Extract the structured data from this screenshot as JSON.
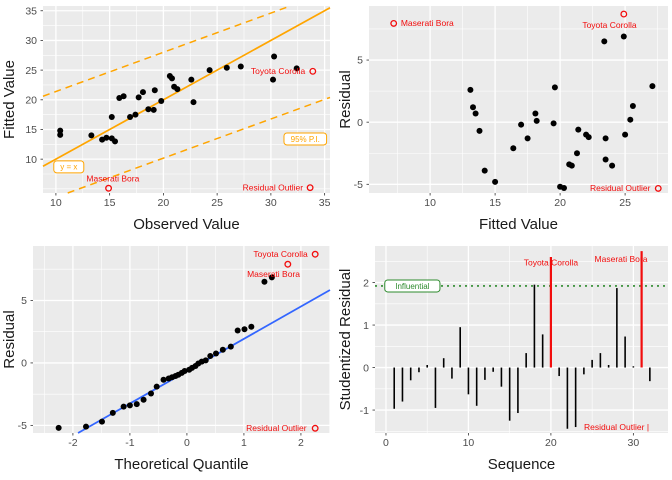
{
  "colors": {
    "page_bg": "#ffffff",
    "panel_bg": "#ebebeb",
    "grid": "#ffffff",
    "tick_text": "#4d4d4d",
    "tick_mark": "#333333",
    "axis_title": "#1a1a1a",
    "point": "#000000",
    "red": "#f20d0d",
    "orange": "#ffa500",
    "blue": "#3366ff",
    "green": "#2e8b2e"
  },
  "chart_data": [
    {
      "id": "observed-vs-fitted",
      "type": "scatter",
      "xlabel": "Observed Value",
      "ylabel": "Fitted Value",
      "xlim": [
        8.8,
        35.5
      ],
      "ylim": [
        4.3,
        35.8
      ],
      "xticks": [
        10,
        15,
        20,
        25,
        30,
        35
      ],
      "xminor": [
        12.5,
        17.5,
        22.5,
        27.5,
        32.5
      ],
      "yticks": [
        10,
        15,
        20,
        25,
        30,
        35
      ],
      "yminor": [
        5,
        7.5,
        12.5,
        17.5,
        22.5,
        27.5,
        32.5
      ],
      "margin": {
        "l": 43,
        "r": 6,
        "t": 6,
        "b": 47
      },
      "points": [
        [
          10.4,
          14.8
        ],
        [
          10.4,
          14.1
        ],
        [
          13.3,
          14.0
        ],
        [
          14.3,
          13.3
        ],
        [
          14.7,
          13.6
        ],
        [
          15.2,
          13.5
        ],
        [
          15.5,
          13.0
        ],
        [
          15.2,
          17.1
        ],
        [
          15.9,
          20.3
        ],
        [
          16.3,
          20.6
        ],
        [
          16.9,
          17.1
        ],
        [
          17.4,
          17.5
        ],
        [
          17.7,
          20.4
        ],
        [
          18.1,
          21.3
        ],
        [
          18.6,
          18.4
        ],
        [
          19.1,
          18.3
        ],
        [
          19.2,
          21.6
        ],
        [
          19.8,
          19.8
        ],
        [
          20.6,
          24.0
        ],
        [
          20.8,
          23.6
        ],
        [
          21.0,
          22.2
        ],
        [
          21.3,
          21.8
        ],
        [
          22.6,
          23.4
        ],
        [
          22.8,
          19.6
        ],
        [
          24.3,
          25.0
        ],
        [
          25.9,
          25.4
        ],
        [
          27.2,
          25.6
        ],
        [
          30.3,
          27.3
        ],
        [
          30.2,
          23.4
        ],
        [
          32.4,
          25.3
        ]
      ],
      "lines": [
        {
          "x1": 8.8,
          "y1": 8.8,
          "x2": 35.5,
          "y2": 35.5,
          "color": "orange",
          "w": 1.7
        },
        {
          "x1": 8.8,
          "y1": 20.6,
          "x2": 31.8,
          "y2": 35.8,
          "color": "orange",
          "w": 1.5,
          "dash": "7 5"
        },
        {
          "x1": 11.1,
          "y1": 4.3,
          "x2": 35.5,
          "y2": 20.4,
          "color": "orange",
          "w": 1.5,
          "dash": "7 5"
        }
      ],
      "flags": [
        {
          "label": "Toyota Corolla",
          "circle": [
            33.9,
            24.8
          ],
          "text": [
            33.2,
            24.8
          ],
          "anchor": "end"
        },
        {
          "label": "Maserati Bora",
          "circle": [
            14.9,
            5.1
          ],
          "text": [
            15.3,
            6.7
          ],
          "anchor": "middle"
        }
      ],
      "legend": {
        "label": "Residual Outlier",
        "marker": "circle",
        "marker_pos": [
          33.65,
          5.2
        ],
        "text": [
          33.0,
          5.2
        ],
        "anchor": "end"
      },
      "boxes": [
        {
          "label": "y = x",
          "cx": 11.2,
          "cy": 8.7,
          "color": "orange"
        },
        {
          "label": "95% P.I.",
          "cx": 33.2,
          "cy": 13.4,
          "color": "orange"
        }
      ]
    },
    {
      "id": "residual-vs-fitted",
      "type": "scatter",
      "xlabel": "Fitted Value",
      "ylabel": "Residual",
      "xlim": [
        5.3,
        28.3
      ],
      "ylim": [
        -5.7,
        9.35
      ],
      "xticks": [
        10,
        15,
        20,
        25
      ],
      "xminor": [
        7.5,
        12.5,
        17.5,
        22.5,
        27.5
      ],
      "yticks": [
        -5,
        0,
        5
      ],
      "yminor": [
        -2.5,
        2.5,
        7.5
      ],
      "margin": {
        "l": 33,
        "r": 4,
        "t": 6,
        "b": 47
      },
      "points": [
        [
          13.1,
          2.6
        ],
        [
          13.3,
          1.2
        ],
        [
          13.5,
          0.7
        ],
        [
          13.8,
          -0.7
        ],
        [
          14.2,
          -3.9
        ],
        [
          15.0,
          -4.8
        ],
        [
          16.4,
          -2.1
        ],
        [
          17.0,
          -0.2
        ],
        [
          17.5,
          -1.3
        ],
        [
          18.1,
          0.7
        ],
        [
          18.2,
          0.1
        ],
        [
          19.5,
          -0.1
        ],
        [
          19.6,
          2.8
        ],
        [
          20.0,
          -5.2
        ],
        [
          20.3,
          -5.3
        ],
        [
          20.7,
          -3.4
        ],
        [
          20.9,
          -3.5
        ],
        [
          21.3,
          -2.5
        ],
        [
          21.4,
          -0.6
        ],
        [
          22.0,
          -1.0
        ],
        [
          22.2,
          -1.2
        ],
        [
          23.4,
          6.5
        ],
        [
          23.5,
          -1.3
        ],
        [
          23.5,
          -3.0
        ],
        [
          24.0,
          -3.5
        ],
        [
          24.9,
          6.9
        ],
        [
          25.0,
          -1.0
        ],
        [
          25.4,
          0.2
        ],
        [
          25.6,
          1.3
        ],
        [
          27.1,
          2.9
        ]
      ],
      "lines": [],
      "flags": [
        {
          "label": "Maserati Bora",
          "circle": [
            7.2,
            7.95
          ],
          "text": [
            7.75,
            7.95
          ],
          "anchor": "start"
        },
        {
          "label": "Toyota Corolla",
          "circle": [
            24.9,
            8.7
          ],
          "text": [
            23.8,
            7.8
          ],
          "anchor": "middle"
        }
      ],
      "legend": {
        "label": "Residual Outlier",
        "marker": "circle",
        "marker_pos": [
          27.55,
          -5.33
        ],
        "text": [
          26.95,
          -5.33
        ],
        "anchor": "end"
      },
      "boxes": []
    },
    {
      "id": "qq-plot",
      "type": "scatter",
      "xlabel": "Theoretical Quantile",
      "ylabel": "Residual",
      "xlim": [
        -2.7,
        2.51
      ],
      "ylim": [
        -5.61,
        9.36
      ],
      "xticks": [
        -2,
        -1,
        0,
        1,
        2
      ],
      "xminor": [
        -2.5,
        -1.5,
        -0.5,
        0.5,
        1.5,
        2.5
      ],
      "yticks": [
        -5,
        0,
        5
      ],
      "yminor": [
        -2.5,
        2.5,
        7.5
      ],
      "margin": {
        "l": 33,
        "r": 6,
        "t": 6,
        "b": 47
      },
      "points": [
        [
          -2.25,
          -5.2
        ],
        [
          -1.77,
          -5.1
        ],
        [
          -1.49,
          -4.7
        ],
        [
          -1.3,
          -4.0
        ],
        [
          -1.11,
          -3.5
        ],
        [
          -1.0,
          -3.4
        ],
        [
          -0.88,
          -3.3
        ],
        [
          -0.76,
          -2.95
        ],
        [
          -0.63,
          -2.45
        ],
        [
          -0.53,
          -1.9
        ],
        [
          -0.41,
          -1.35
        ],
        [
          -0.32,
          -1.25
        ],
        [
          -0.26,
          -1.15
        ],
        [
          -0.2,
          -1.05
        ],
        [
          -0.15,
          -0.95
        ],
        [
          -0.09,
          -0.8
        ],
        [
          -0.04,
          -0.65
        ],
        [
          0.04,
          -0.55
        ],
        [
          0.09,
          -0.4
        ],
        [
          0.15,
          -0.25
        ],
        [
          0.2,
          -0.05
        ],
        [
          0.26,
          0.1
        ],
        [
          0.33,
          0.2
        ],
        [
          0.41,
          0.55
        ],
        [
          0.51,
          0.75
        ],
        [
          0.63,
          1.05
        ],
        [
          0.77,
          1.3
        ],
        [
          0.89,
          2.6
        ],
        [
          1.01,
          2.7
        ],
        [
          1.13,
          2.9
        ],
        [
          1.36,
          6.5
        ],
        [
          1.49,
          6.85
        ]
      ],
      "lines": [
        {
          "x1": -1.91,
          "y1": -5.61,
          "x2": 2.51,
          "y2": 5.84,
          "color": "blue",
          "w": 1.8
        }
      ],
      "flags": [
        {
          "label": "Toyota Corolla",
          "circle": [
            2.25,
            8.7
          ],
          "text": [
            2.12,
            8.7
          ],
          "anchor": "end"
        },
        {
          "label": "Maserati Bora",
          "circle": [
            1.77,
            7.9
          ],
          "text": [
            1.52,
            7.1
          ],
          "anchor": "middle"
        }
      ],
      "legend": {
        "label": "Residual Outlier",
        "marker": "circle",
        "marker_pos": [
          2.25,
          -5.23
        ],
        "text": [
          2.1,
          -5.23
        ],
        "anchor": "end"
      },
      "boxes": []
    },
    {
      "id": "studentized-residual-sequence",
      "type": "bar",
      "xlabel": "Sequence",
      "ylabel": "Studentized Residual",
      "xlim": [
        -1.33,
        34.2
      ],
      "ylim": [
        -1.54,
        2.86
      ],
      "xticks": [
        0,
        10,
        20,
        30
      ],
      "xminor": [
        5,
        15,
        25
      ],
      "yticks": [
        -1,
        0,
        1,
        2
      ],
      "yminor": [
        -1.5,
        -0.5,
        0.5,
        1.5,
        2.5
      ],
      "margin": {
        "l": 39,
        "r": 4,
        "t": 6,
        "b": 47
      },
      "bars": [
        [
          1,
          -0.97
        ],
        [
          2,
          -0.8
        ],
        [
          3,
          -0.3
        ],
        [
          4,
          -0.11
        ],
        [
          5,
          0.06
        ],
        [
          6,
          -0.95
        ],
        [
          7,
          0.22
        ],
        [
          8,
          -0.26
        ],
        [
          9,
          0.95
        ],
        [
          10,
          -0.63
        ],
        [
          11,
          -0.9
        ],
        [
          12,
          -0.29
        ],
        [
          13,
          -0.1
        ],
        [
          14,
          -0.45
        ],
        [
          15,
          -1.25
        ],
        [
          16,
          -1.07
        ],
        [
          17,
          0.34
        ],
        [
          18,
          1.95
        ],
        [
          19,
          0.78
        ],
        [
          21,
          -0.2
        ],
        [
          22,
          -1.44
        ],
        [
          23,
          -1.4
        ],
        [
          24,
          -0.16
        ],
        [
          25,
          0.18
        ],
        [
          26,
          0.34
        ],
        [
          27,
          0.06
        ],
        [
          28,
          1.87
        ],
        [
          29,
          0.73
        ],
        [
          30,
          0.03
        ],
        [
          32,
          -0.32
        ]
      ],
      "red_bars": [
        {
          "x": 20,
          "v": 2.6,
          "label": "Toyota Corolla",
          "text": [
            20.0,
            2.4
          ],
          "anchor": "middle"
        },
        {
          "x": 31,
          "v": 2.74,
          "label": "Maserati Bora",
          "text": [
            28.5,
            2.48
          ],
          "anchor": "middle"
        }
      ],
      "hline": {
        "y": 1.92,
        "dash": "2 4"
      },
      "boxes": [
        {
          "label": "Influential",
          "cx": 3.2,
          "cy": 1.92,
          "color": "green"
        }
      ],
      "legend": {
        "label": "Residual Outlier |",
        "marker": "none",
        "text": [
          31.9,
          -1.4
        ],
        "anchor": "end"
      },
      "points": [],
      "lines": [],
      "flags": []
    }
  ]
}
